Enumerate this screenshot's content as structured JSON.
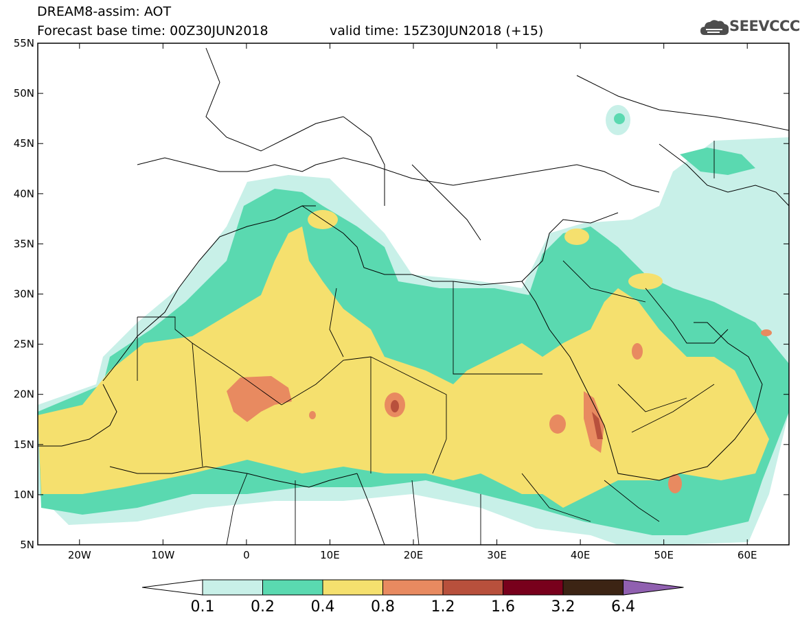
{
  "header": {
    "title": "DREAM8-assim: AOT",
    "base_time": "Forecast base time: 00Z30JUN2018",
    "valid_time": "valid time: 15Z30JUN2018 (+15)",
    "logo_text": "SEEVCCC"
  },
  "map": {
    "lon_range": [
      -25,
      65
    ],
    "lat_range": [
      5,
      55
    ],
    "lat_labels": [
      "5N",
      "10N",
      "15N",
      "20N",
      "25N",
      "30N",
      "35N",
      "40N",
      "45N",
      "50N",
      "55N"
    ],
    "lon_labels": [
      "20W",
      "10W",
      "0",
      "10E",
      "20E",
      "30E",
      "40E",
      "50E",
      "60E"
    ],
    "field": "AOT"
  },
  "colorbar": {
    "labels": [
      "0.1",
      "0.2",
      "0.4",
      "0.8",
      "1.2",
      "1.6",
      "3.2",
      "6.4"
    ],
    "colors": [
      "#c8f0e8",
      "#5ad9b0",
      "#f5e06e",
      "#e88a60",
      "#b8503c",
      "#78001c",
      "#3c2414",
      "#9060b0"
    ],
    "under_color": "#ffffff"
  },
  "colors": {
    "c1": "#c8f0e8",
    "c2": "#5ad9b0",
    "c3": "#f5e06e",
    "c4": "#e88a60",
    "c5": "#b8503c"
  }
}
